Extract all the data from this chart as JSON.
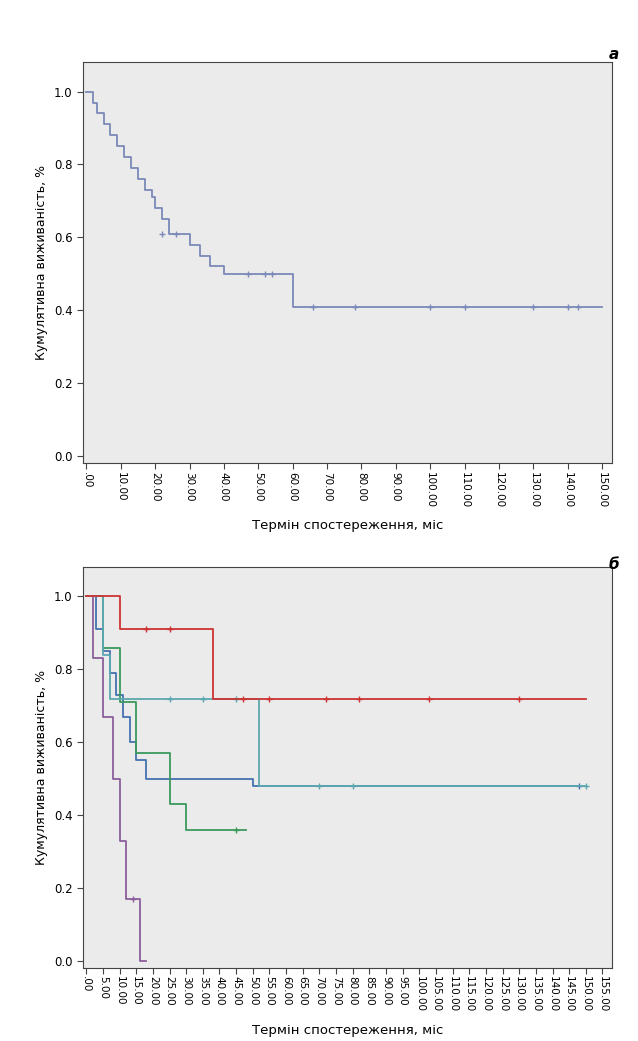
{
  "panel_a_label": "a",
  "panel_b_label": "б",
  "ylabel": "Кумулятивна виживаність, %",
  "xlabel": "Термін спостереження, міс",
  "bg_color": "#ebebeb",
  "line_color_a": "#7b8ab8",
  "km_a": {
    "times": [
      0,
      2,
      3,
      5,
      7,
      9,
      11,
      13,
      15,
      17,
      19,
      20,
      22,
      24,
      27,
      30,
      33,
      36,
      40,
      45,
      48,
      52,
      55,
      58,
      60,
      65,
      70,
      75,
      80,
      90,
      100,
      110,
      120,
      130,
      140,
      143,
      150
    ],
    "surv": [
      1.0,
      0.97,
      0.94,
      0.91,
      0.88,
      0.85,
      0.82,
      0.79,
      0.76,
      0.73,
      0.71,
      0.68,
      0.65,
      0.61,
      0.61,
      0.58,
      0.55,
      0.52,
      0.5,
      0.5,
      0.5,
      0.5,
      0.5,
      0.5,
      0.41,
      0.41,
      0.41,
      0.41,
      0.41,
      0.41,
      0.41,
      0.41,
      0.41,
      0.41,
      0.41,
      0.41,
      0.41
    ],
    "censor_times": [
      22,
      26,
      47,
      52,
      54,
      66,
      78,
      100,
      110,
      130,
      140,
      143
    ],
    "censor_surv": [
      0.61,
      0.61,
      0.5,
      0.5,
      0.5,
      0.41,
      0.41,
      0.41,
      0.41,
      0.41,
      0.41,
      0.41
    ]
  },
  "km_b": {
    "purple": {
      "times": [
        0,
        2,
        5,
        8,
        10,
        12,
        14,
        16,
        18
      ],
      "surv": [
        1.0,
        0.83,
        0.67,
        0.5,
        0.33,
        0.17,
        0.17,
        0.0,
        0.0
      ],
      "censor_times": [
        14
      ],
      "censor_surv": [
        0.17
      ]
    },
    "blue": {
      "times": [
        0,
        3,
        5,
        7,
        9,
        11,
        13,
        15,
        18,
        20,
        25,
        50,
        55,
        100,
        140,
        148
      ],
      "surv": [
        1.0,
        0.91,
        0.85,
        0.79,
        0.73,
        0.67,
        0.6,
        0.55,
        0.5,
        0.5,
        0.5,
        0.48,
        0.48,
        0.48,
        0.48,
        0.48
      ],
      "censor_times": [
        148
      ],
      "censor_surv": [
        0.48
      ]
    },
    "green": {
      "times": [
        0,
        5,
        10,
        15,
        20,
        25,
        30,
        35,
        38,
        45,
        48
      ],
      "surv": [
        1.0,
        0.86,
        0.71,
        0.57,
        0.57,
        0.43,
        0.36,
        0.36,
        0.36,
        0.36,
        0.36
      ],
      "censor_times": [
        45
      ],
      "censor_surv": [
        0.36
      ]
    },
    "teal": {
      "times": [
        0,
        3,
        5,
        7,
        9,
        11,
        13,
        18,
        20,
        25,
        30,
        35,
        40,
        45,
        50,
        52,
        55,
        60,
        65,
        70,
        75,
        80,
        100,
        105,
        150
      ],
      "surv": [
        1.0,
        1.0,
        0.84,
        0.72,
        0.72,
        0.72,
        0.72,
        0.72,
        0.72,
        0.72,
        0.72,
        0.72,
        0.72,
        0.72,
        0.72,
        0.48,
        0.48,
        0.48,
        0.48,
        0.48,
        0.48,
        0.48,
        0.48,
        0.48,
        0.48
      ],
      "censor_times": [
        25,
        35,
        45,
        70,
        80,
        150
      ],
      "censor_surv": [
        0.72,
        0.72,
        0.72,
        0.48,
        0.48,
        0.48
      ]
    },
    "red": {
      "times": [
        0,
        5,
        10,
        12,
        15,
        18,
        20,
        25,
        30,
        38,
        40,
        50,
        55,
        60,
        65,
        70,
        75,
        80,
        90,
        100,
        110,
        120,
        130,
        140,
        150
      ],
      "surv": [
        1.0,
        1.0,
        0.91,
        0.91,
        0.91,
        0.91,
        0.91,
        0.91,
        0.91,
        0.72,
        0.72,
        0.72,
        0.72,
        0.72,
        0.72,
        0.72,
        0.72,
        0.72,
        0.72,
        0.72,
        0.72,
        0.72,
        0.72,
        0.72,
        0.72
      ],
      "censor_times": [
        18,
        25,
        47,
        55,
        72,
        82,
        103,
        130
      ],
      "censor_surv": [
        0.91,
        0.91,
        0.72,
        0.72,
        0.72,
        0.72,
        0.72,
        0.72
      ]
    }
  },
  "ylim": [
    -0.02,
    1.08
  ],
  "xlim_a": [
    -1,
    153
  ],
  "xlim_b": [
    -1,
    158
  ],
  "xticks_a": [
    0,
    10,
    20,
    30,
    40,
    50,
    60,
    70,
    80,
    90,
    100,
    110,
    120,
    130,
    140,
    150
  ],
  "xticks_b": [
    0,
    5,
    10,
    15,
    20,
    25,
    30,
    35,
    40,
    45,
    50,
    55,
    60,
    65,
    70,
    75,
    80,
    85,
    90,
    95,
    100,
    105,
    110,
    115,
    120,
    125,
    130,
    135,
    140,
    145,
    150,
    155
  ],
  "yticks": [
    0.0,
    0.2,
    0.4,
    0.6,
    0.8,
    1.0
  ],
  "colors_map": {
    "purple": "#8b5e9b",
    "blue": "#4472b0",
    "green": "#3a9a5c",
    "teal": "#5ba8b0",
    "red": "#cc3333"
  }
}
